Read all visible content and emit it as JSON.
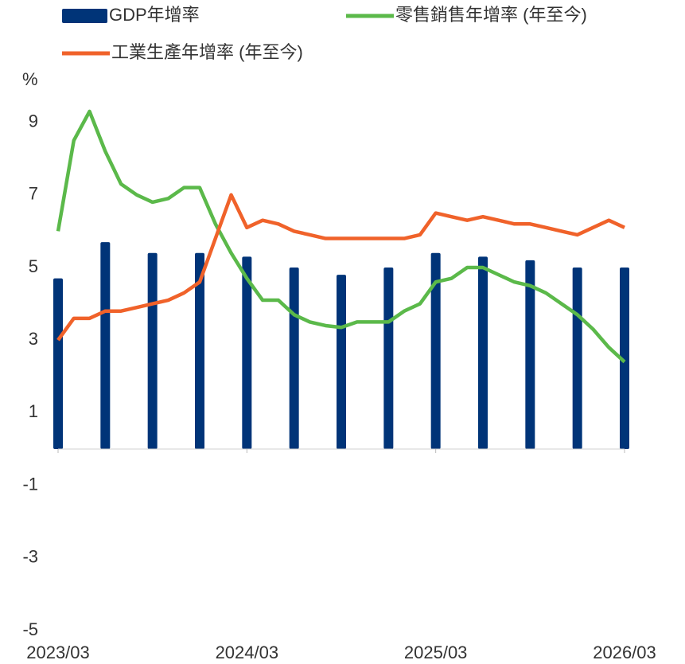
{
  "chart_data": {
    "type": "bar",
    "y_label": "%",
    "categories": [
      "2023/03",
      null,
      null,
      null,
      null,
      null,
      null,
      null,
      null,
      null,
      null,
      null,
      "2024/03",
      null,
      null,
      null,
      null,
      null,
      null,
      null,
      null,
      null,
      null,
      null,
      "2025/03",
      null,
      null,
      null,
      null,
      null,
      null,
      null,
      null,
      null,
      null,
      null,
      "2026/03"
    ],
    "series": [
      {
        "name": "GDP年增率",
        "type": "bar",
        "color": "#003478",
        "values": [
          4.7,
          null,
          null,
          5.7,
          null,
          null,
          5.4,
          null,
          null,
          5.4,
          null,
          null,
          5.3,
          null,
          null,
          5.0,
          null,
          null,
          4.8,
          null,
          null,
          5.0,
          null,
          null,
          5.4,
          null,
          null,
          5.3,
          null,
          null,
          5.2,
          null,
          null,
          5.0,
          null,
          null,
          5.0
        ]
      },
      {
        "name": "零售銷售年增率 (年至今)",
        "type": "line",
        "color": "#5bb94a",
        "values": [
          6.0,
          8.5,
          9.3,
          8.2,
          7.3,
          7.0,
          6.8,
          6.9,
          7.2,
          7.2,
          6.2,
          5.4,
          4.7,
          4.1,
          4.1,
          3.7,
          3.5,
          3.4,
          3.35,
          3.5,
          3.5,
          3.5,
          3.8,
          4.0,
          4.6,
          4.7,
          5.0,
          5.0,
          4.8,
          4.6,
          4.5,
          4.3,
          4.0,
          3.7,
          3.3,
          2.8,
          2.4
        ]
      },
      {
        "name": "工業生產年增率 (年至今)",
        "type": "line",
        "color": "#f0622a",
        "values": [
          3.0,
          3.6,
          3.6,
          3.8,
          3.8,
          3.9,
          4.0,
          4.1,
          4.3,
          4.6,
          5.8,
          7.0,
          6.1,
          6.3,
          6.2,
          6.0,
          5.9,
          5.8,
          5.8,
          5.8,
          5.8,
          5.8,
          5.8,
          5.9,
          6.5,
          6.4,
          6.3,
          6.4,
          6.3,
          6.2,
          6.2,
          6.1,
          6.0,
          5.9,
          6.1,
          6.3,
          6.1
        ]
      }
    ],
    "ylim": [
      -5,
      10
    ],
    "yticks": [
      9,
      7,
      5,
      3,
      1,
      -1,
      -3,
      -5
    ],
    "grid": false
  }
}
